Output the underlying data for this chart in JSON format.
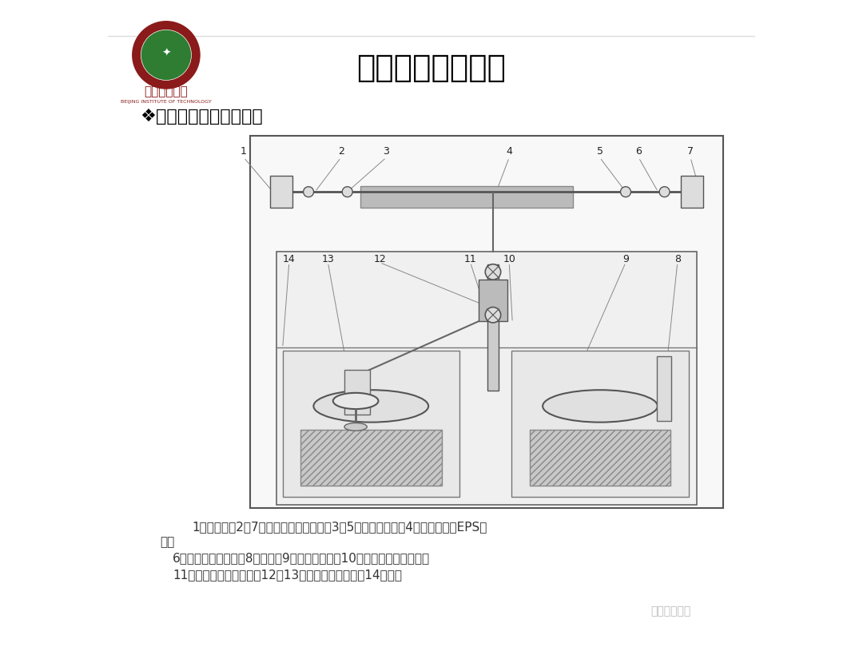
{
  "title": "试验台结构与原理",
  "subtitle": "❖试验台组成与工作原理",
  "bg_color": "#ffffff",
  "title_color": "#000000",
  "subtitle_color": "#000000",
  "caption_line1": "1－铁地板；2，7－转向阻力加载装置；3，5－拉压传感器；4－齿轮齿条式EPS系",
  "caption_line1b": "统；",
  "caption_line2": "6－齿条位移传感器；8－座椅；9－驾驶模拟器；10－转向盘扭矩传感器；",
  "caption_line3": "11－转向盘转角传感器；12，13－转向盘驱动装置；14－导轨",
  "watermark": "电动汽车快讯",
  "university_name": "北京理工大学",
  "university_sub": "BEIJING INSTITUTE OF TECHNOLOGY",
  "frame_color": "#888888",
  "light_gray": "#d0d0d0",
  "mid_gray": "#a0a0a0",
  "dark_gray": "#606060"
}
